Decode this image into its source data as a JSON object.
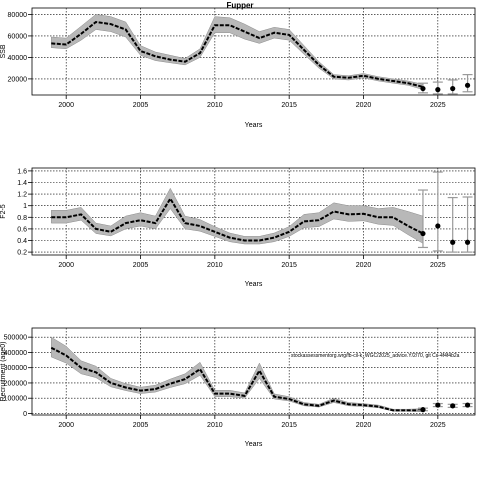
{
  "page_title": "Fupper",
  "colors": {
    "band": "#b8b8b8",
    "band_edge": "#8c8c8c",
    "line": "#000000",
    "grid": "#000000",
    "forecast_bar": "#9a9a9a"
  },
  "chart_data": [
    {
      "type": "line",
      "id": "ssb",
      "ylabel": "SSB",
      "xlabel": "Years",
      "xlim": [
        1997.7,
        2027.5
      ],
      "ylim": [
        5000,
        86000
      ],
      "xticks": [
        2000,
        2005,
        2010,
        2015,
        2020,
        2025
      ],
      "yticks": [
        20000,
        40000,
        60000,
        80000
      ],
      "grid": true,
      "annotation": "",
      "x": [
        1999,
        2000,
        2001,
        2002,
        2003,
        2004,
        2005,
        2006,
        2007,
        2008,
        2009,
        2010,
        2011,
        2012,
        2013,
        2014,
        2015,
        2016,
        2017,
        2018,
        2019,
        2020,
        2021,
        2022,
        2023,
        2024
      ],
      "y": [
        53000,
        52000,
        62000,
        73000,
        71000,
        66000,
        46000,
        41000,
        38000,
        36000,
        44000,
        70000,
        70000,
        64000,
        58000,
        63000,
        61000,
        47000,
        33000,
        22000,
        21000,
        23000,
        20000,
        18000,
        16000,
        12500
      ],
      "lower": [
        49000,
        48000,
        56000,
        66000,
        64000,
        59000,
        42000,
        37000,
        35000,
        33000,
        40000,
        63000,
        63000,
        57000,
        53000,
        58000,
        56000,
        43000,
        30000,
        20000,
        19000,
        21000,
        18000,
        16000,
        14000,
        10000
      ],
      "upper": [
        59000,
        58000,
        69000,
        80000,
        78000,
        73000,
        51000,
        45000,
        42000,
        39000,
        48000,
        78000,
        77000,
        71000,
        64000,
        68000,
        66000,
        51000,
        36000,
        24000,
        23000,
        25000,
        22000,
        20000,
        18000,
        15000
      ],
      "forecast": {
        "x": [
          2024,
          2025,
          2026,
          2027
        ],
        "y": [
          11000,
          10000,
          11000,
          14000
        ],
        "lower": [
          7000,
          6000,
          6000,
          8000
        ],
        "upper": [
          16000,
          17000,
          19000,
          24000
        ]
      }
    },
    {
      "type": "line",
      "id": "f",
      "ylabel": "F2-5",
      "xlabel": "Years",
      "xlim": [
        1997.7,
        2027.5
      ],
      "ylim": [
        0.15,
        1.65
      ],
      "xticks": [
        2000,
        2005,
        2010,
        2015,
        2020,
        2025
      ],
      "yticks": [
        0.2,
        0.4,
        0.6,
        0.8,
        1.0,
        1.2,
        1.4,
        1.6
      ],
      "grid": true,
      "annotation": "",
      "x": [
        1999,
        2000,
        2001,
        2002,
        2003,
        2004,
        2005,
        2006,
        2007,
        2008,
        2009,
        2010,
        2011,
        2012,
        2013,
        2014,
        2015,
        2016,
        2017,
        2018,
        2019,
        2020,
        2021,
        2022,
        2023,
        2024
      ],
      "y": [
        0.8,
        0.8,
        0.85,
        0.6,
        0.55,
        0.7,
        0.75,
        0.7,
        1.12,
        0.7,
        0.65,
        0.55,
        0.45,
        0.4,
        0.4,
        0.45,
        0.55,
        0.73,
        0.75,
        0.9,
        0.85,
        0.86,
        0.8,
        0.8,
        0.65,
        0.52
      ],
      "lower": [
        0.7,
        0.7,
        0.75,
        0.52,
        0.48,
        0.6,
        0.65,
        0.6,
        0.95,
        0.6,
        0.56,
        0.47,
        0.38,
        0.34,
        0.34,
        0.38,
        0.47,
        0.62,
        0.64,
        0.77,
        0.73,
        0.74,
        0.68,
        0.66,
        0.5,
        0.35
      ],
      "upper": [
        0.92,
        0.92,
        0.97,
        0.7,
        0.65,
        0.82,
        0.88,
        0.82,
        1.3,
        0.82,
        0.76,
        0.64,
        0.53,
        0.47,
        0.47,
        0.53,
        0.64,
        0.85,
        0.88,
        1.05,
        1.0,
        1.0,
        0.95,
        0.97,
        0.9,
        0.82
      ],
      "forecast": {
        "x": [
          2024,
          2025,
          2026,
          2027
        ],
        "y": [
          0.52,
          0.65,
          0.37,
          0.37
        ],
        "lower": [
          0.28,
          0.22,
          0.2,
          0.2
        ],
        "upper": [
          1.27,
          1.58,
          1.14,
          1.15
        ]
      }
    },
    {
      "type": "line",
      "id": "rec",
      "ylabel": "Recruitment (age0)",
      "xlabel": "Years",
      "xlim": [
        1997.7,
        2027.5
      ],
      "ylim": [
        -10000,
        560000
      ],
      "xticks": [
        2000,
        2005,
        2010,
        2015,
        2020,
        2025
      ],
      "yticks": [
        0,
        100000,
        200000,
        300000,
        400000,
        500000
      ],
      "ytick_labels": [
        "0",
        "100000",
        "200000",
        "300000",
        "400000",
        "500000"
      ],
      "grid": true,
      "annotation": "stockassessmentorg.wrg/fb-cil-k_WGC/2025_advice.Y/2/70, git Cc-4f4f4b2a",
      "x": [
        1999,
        2000,
        2001,
        2002,
        2003,
        2004,
        2005,
        2006,
        2007,
        2008,
        2009,
        2010,
        2011,
        2012,
        2013,
        2014,
        2015,
        2016,
        2017,
        2018,
        2019,
        2020,
        2021,
        2022,
        2023,
        2024
      ],
      "y": [
        430000,
        380000,
        300000,
        270000,
        200000,
        170000,
        150000,
        160000,
        195000,
        225000,
        290000,
        130000,
        130000,
        115000,
        280000,
        110000,
        95000,
        60000,
        50000,
        85000,
        60000,
        55000,
        45000,
        20000,
        20000,
        20000
      ],
      "lower": [
        370000,
        330000,
        260000,
        235000,
        175000,
        150000,
        130000,
        140000,
        170000,
        195000,
        250000,
        110000,
        110000,
        100000,
        230000,
        95000,
        82000,
        50000,
        42000,
        72000,
        50000,
        46000,
        38000,
        15000,
        14000,
        12000
      ],
      "upper": [
        500000,
        440000,
        345000,
        310000,
        230000,
        195000,
        172000,
        185000,
        225000,
        260000,
        335000,
        152000,
        152000,
        135000,
        330000,
        128000,
        110000,
        72000,
        60000,
        100000,
        72000,
        65000,
        55000,
        28000,
        28000,
        32000
      ],
      "forecast": {
        "x": [
          2024,
          2025,
          2026,
          2027
        ],
        "y": [
          25000,
          55000,
          50000,
          55000
        ],
        "lower": [
          18000,
          45000,
          40000,
          45000
        ],
        "upper": [
          35000,
          65000,
          60000,
          65000
        ]
      }
    }
  ]
}
